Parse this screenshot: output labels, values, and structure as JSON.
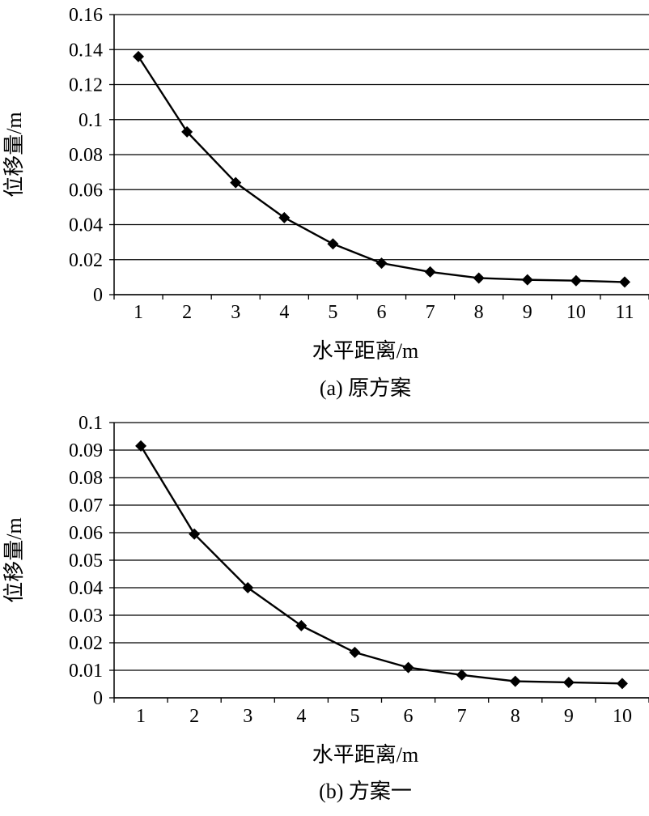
{
  "colors": {
    "line": "#000000",
    "grid": "#000000",
    "background": "#ffffff"
  },
  "chart_data": [
    {
      "type": "line",
      "caption": "(a) 原方案",
      "xlabel": "水平距离/m",
      "ylabel": "位移量/m",
      "x": [
        "1",
        "2",
        "3",
        "4",
        "5",
        "6",
        "7",
        "8",
        "9",
        "10",
        "11"
      ],
      "ylim": [
        0,
        0.16
      ],
      "yticks": [
        "0",
        "0.02",
        "0.04",
        "0.06",
        "0.08",
        "0.1",
        "0.12",
        "0.14",
        "0.16"
      ],
      "grid": true,
      "legend": "none",
      "marker": "diamond",
      "series": [
        {
          "values": [
            0.136,
            0.093,
            0.064,
            0.044,
            0.029,
            0.018,
            0.013,
            0.0095,
            0.0085,
            0.008,
            0.0072
          ]
        }
      ]
    },
    {
      "type": "line",
      "caption": "(b) 方案一",
      "xlabel": "水平距离/m",
      "ylabel": "位移量/m",
      "x": [
        "1",
        "2",
        "3",
        "4",
        "5",
        "6",
        "7",
        "8",
        "9",
        "10"
      ],
      "ylim": [
        0,
        0.1
      ],
      "yticks": [
        "0",
        "0.01",
        "0.02",
        "0.03",
        "0.04",
        "0.05",
        "0.06",
        "0.07",
        "0.08",
        "0.09",
        "0.1"
      ],
      "grid": true,
      "legend": "none",
      "marker": "diamond",
      "series": [
        {
          "values": [
            0.0915,
            0.0595,
            0.04,
            0.0262,
            0.0165,
            0.011,
            0.0083,
            0.006,
            0.0056,
            0.0052
          ]
        }
      ]
    }
  ]
}
